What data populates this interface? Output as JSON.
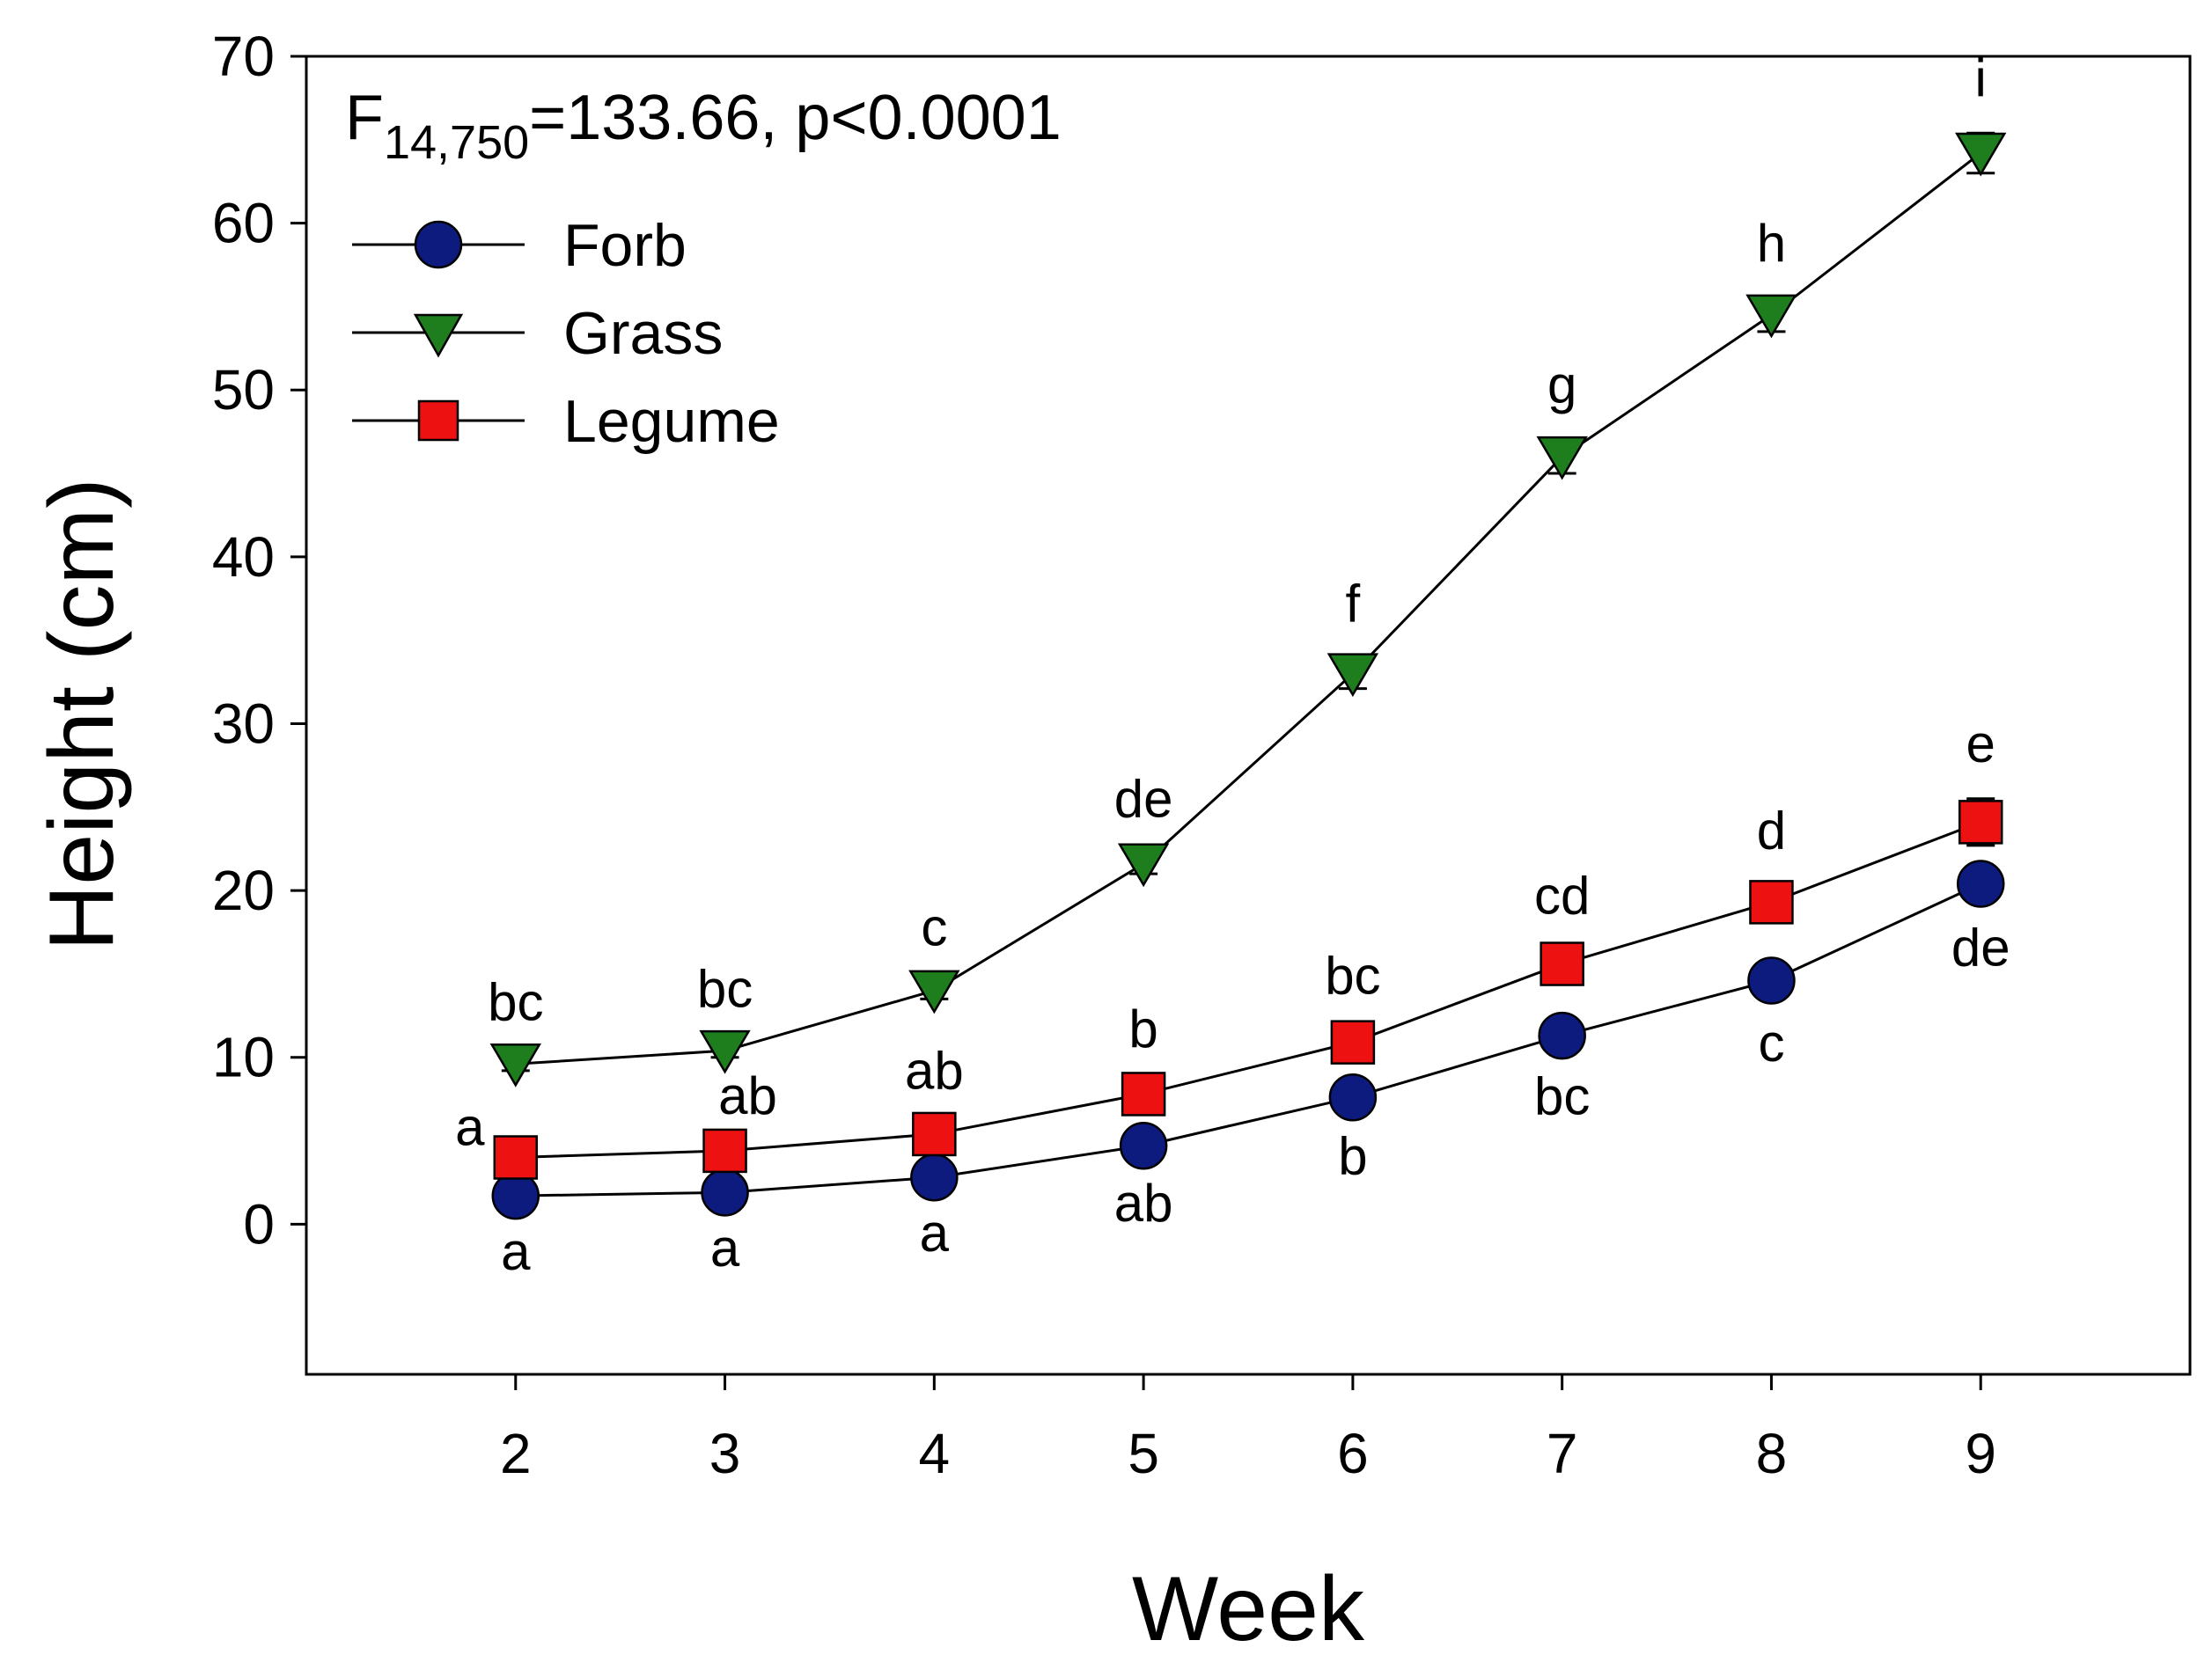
{
  "chart_data": {
    "type": "line",
    "xlabel": "Week",
    "ylabel": "Height (cm)",
    "x": [
      2,
      3,
      4,
      5,
      6,
      7,
      8,
      9
    ],
    "x_ticks": [
      "2",
      "3",
      "4",
      "5",
      "6",
      "7",
      "8",
      "9"
    ],
    "xlim": [
      1,
      10
    ],
    "ylim": [
      -9,
      70
    ],
    "y_ticks": [
      "0",
      "10",
      "20",
      "30",
      "40",
      "50",
      "60",
      "70"
    ],
    "y_tick_values": [
      0,
      10,
      20,
      30,
      40,
      50,
      60,
      70
    ],
    "statistic": {
      "prefix": "F",
      "subscript": "14,750",
      "rest": "=133.66, p<0.0001"
    },
    "legend_position": "top-left",
    "series": [
      {
        "name": "Forb",
        "marker": "circle",
        "color": "#0d1a7e",
        "values": [
          1.7,
          1.9,
          2.8,
          4.7,
          7.6,
          11.3,
          14.6,
          20.4
        ],
        "errors": [
          0.3,
          0.3,
          0.3,
          0.4,
          0.5,
          0.6,
          0.7,
          0.8
        ],
        "letters": [
          "a",
          "a",
          "a",
          "ab",
          "b",
          "bc",
          "c",
          "de"
        ],
        "letter_side": "below"
      },
      {
        "name": "Grass",
        "marker": "triangle-down",
        "color": "#1e7e1e",
        "values": [
          9.6,
          10.4,
          14.0,
          21.6,
          33.0,
          46.0,
          54.5,
          64.2
        ],
        "errors": [
          0.4,
          0.4,
          0.5,
          0.6,
          0.9,
          1.0,
          1.0,
          1.2
        ],
        "letters": [
          "bc",
          "bc",
          "c",
          "de",
          "f",
          "g",
          "h",
          "i"
        ],
        "letter_side": "above"
      },
      {
        "name": "Legume",
        "marker": "square",
        "color": "#ee1111",
        "values": [
          4.0,
          4.4,
          5.4,
          7.8,
          10.9,
          15.6,
          19.3,
          24.1
        ],
        "errors": [
          0.4,
          0.4,
          0.5,
          0.6,
          0.7,
          0.8,
          1.0,
          1.4
        ],
        "letters": [
          "a",
          "ab",
          "ab",
          "b",
          "bc",
          "cd",
          "d",
          "e"
        ],
        "letter_side": "above"
      }
    ]
  }
}
